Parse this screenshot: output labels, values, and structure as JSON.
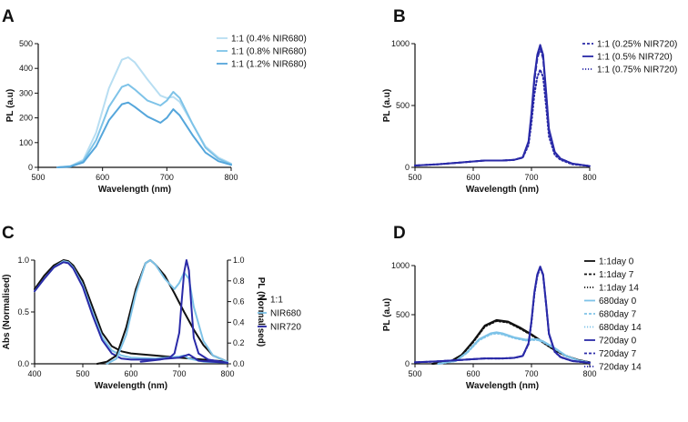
{
  "colors": {
    "axis": "#111111",
    "black": "#111111",
    "light_blue_1": "#B8DEF2",
    "light_blue_2": "#7EC3E8",
    "light_blue_3": "#55A6DB",
    "navy": "#2A2AA8"
  },
  "chart_data": [
    {
      "id": "A",
      "type": "line",
      "panel_letter": "A",
      "xlabel": "Wavelength (nm)",
      "ylabel": "PL (a.u)",
      "xlim": [
        500,
        800
      ],
      "ylim": [
        0,
        500
      ],
      "xticks": [
        500,
        600,
        700,
        800
      ],
      "yticks": [
        0,
        100,
        200,
        300,
        400,
        500
      ],
      "xtick_labels": [
        "500",
        "600",
        "700",
        "800"
      ],
      "ytick_labels": [
        "0",
        "100",
        "200",
        "300",
        "400",
        "500"
      ],
      "legend_position": "top-right",
      "series": [
        {
          "name": "1:1 (0.4% NIR680)",
          "color": "#B8DEF2",
          "style": "solid",
          "x": [
            530,
            550,
            570,
            590,
            610,
            630,
            640,
            650,
            670,
            690,
            700,
            710,
            720,
            740,
            760,
            780,
            800
          ],
          "y": [
            0,
            5,
            30,
            140,
            320,
            435,
            445,
            425,
            355,
            290,
            280,
            285,
            265,
            175,
            85,
            40,
            15
          ]
        },
        {
          "name": "1:1 (0.8% NIR680)",
          "color": "#7EC3E8",
          "style": "solid",
          "x": [
            530,
            550,
            570,
            590,
            610,
            630,
            640,
            650,
            670,
            690,
            700,
            710,
            720,
            740,
            760,
            780,
            800
          ],
          "y": [
            0,
            4,
            25,
            110,
            245,
            325,
            335,
            315,
            270,
            250,
            270,
            305,
            280,
            175,
            80,
            35,
            12
          ]
        },
        {
          "name": "1:1 (1.2% NIR680)",
          "color": "#55A6DB",
          "style": "solid",
          "x": [
            530,
            550,
            570,
            590,
            610,
            630,
            640,
            650,
            670,
            690,
            700,
            710,
            720,
            740,
            760,
            780,
            800
          ],
          "y": [
            0,
            3,
            20,
            85,
            190,
            255,
            262,
            245,
            205,
            180,
            200,
            235,
            210,
            130,
            60,
            25,
            10
          ]
        }
      ]
    },
    {
      "id": "B",
      "type": "line",
      "panel_letter": "B",
      "xlabel": "Wavelength (nm)",
      "ylabel": "PL (a.u)",
      "xlim": [
        500,
        800
      ],
      "ylim": [
        0,
        1000
      ],
      "xticks": [
        500,
        600,
        700,
        800
      ],
      "yticks": [
        0,
        500,
        1000
      ],
      "xtick_labels": [
        "500",
        "600",
        "700",
        "800"
      ],
      "ytick_labels": [
        "0",
        "500",
        "1000"
      ],
      "legend_position": "top-right",
      "series": [
        {
          "name": "1:1 (0.25% NIR720)",
          "color": "#2A2AA8",
          "style": "dashed",
          "x": [
            500,
            540,
            580,
            620,
            650,
            670,
            685,
            695,
            700,
            705,
            710,
            715,
            720,
            725,
            730,
            740,
            750,
            770,
            800
          ],
          "y": [
            15,
            25,
            40,
            55,
            55,
            60,
            80,
            200,
            420,
            700,
            880,
            960,
            880,
            600,
            300,
            120,
            70,
            30,
            10
          ]
        },
        {
          "name": "1:1 (0.5% NIR720)",
          "color": "#2A2AA8",
          "style": "solid",
          "x": [
            500,
            540,
            580,
            620,
            650,
            670,
            685,
            695,
            700,
            705,
            710,
            715,
            720,
            725,
            730,
            740,
            750,
            770,
            800
          ],
          "y": [
            15,
            25,
            40,
            55,
            55,
            60,
            80,
            210,
            440,
            730,
            910,
            990,
            910,
            620,
            310,
            125,
            70,
            30,
            10
          ]
        },
        {
          "name": "1:1 (0.75% NIR720)",
          "color": "#2A2AA8",
          "style": "dotted",
          "x": [
            500,
            540,
            580,
            620,
            650,
            670,
            685,
            695,
            700,
            705,
            710,
            715,
            720,
            725,
            730,
            740,
            750,
            770,
            800
          ],
          "y": [
            15,
            25,
            40,
            55,
            55,
            60,
            78,
            180,
            360,
            590,
            730,
            790,
            730,
            500,
            250,
            100,
            60,
            25,
            10
          ]
        }
      ]
    },
    {
      "id": "C",
      "type": "line",
      "panel_letter": "C",
      "xlabel": "Wavelength (nm)",
      "ylabel": "Abs (Normalised)",
      "y2label": "PL (Normalised)",
      "xlim": [
        400,
        800
      ],
      "ylim": [
        0,
        1
      ],
      "y2lim": [
        0,
        1
      ],
      "xticks": [
        400,
        500,
        600,
        700,
        800
      ],
      "yticks": [
        0,
        0.5,
        1
      ],
      "y2ticks": [
        0,
        0.2,
        0.4,
        0.6,
        0.8,
        1
      ],
      "xtick_labels": [
        "400",
        "500",
        "600",
        "700",
        "800"
      ],
      "ytick_labels": [
        "0.0",
        "0.5",
        "1.0"
      ],
      "y2tick_labels": [
        "0.0",
        "0.2",
        "0.4",
        "0.6",
        "0.8",
        "1.0"
      ],
      "legend_position": "right",
      "legend": [
        {
          "name": "1:1",
          "color": "#111111"
        },
        {
          "name": "NIR680",
          "color": "#7EC3E8"
        },
        {
          "name": "NIR720",
          "color": "#2A2AA8"
        }
      ],
      "series": [
        {
          "name": "1:1 Abs",
          "color": "#111111",
          "style": "solid",
          "x": [
            400,
            420,
            440,
            460,
            470,
            480,
            500,
            520,
            540,
            560,
            580,
            600,
            650,
            700,
            750,
            800
          ],
          "y": [
            0.72,
            0.85,
            0.95,
            1.0,
            0.99,
            0.95,
            0.8,
            0.55,
            0.3,
            0.17,
            0.12,
            0.1,
            0.08,
            0.06,
            0.04,
            0.02
          ]
        },
        {
          "name": "NIR680 Abs",
          "color": "#7EC3E8",
          "style": "solid",
          "x": [
            400,
            420,
            440,
            460,
            470,
            480,
            500,
            520,
            540,
            560,
            580,
            600,
            650,
            700,
            710,
            720,
            750,
            800
          ],
          "y": [
            0.7,
            0.82,
            0.93,
            0.99,
            0.98,
            0.93,
            0.76,
            0.5,
            0.26,
            0.13,
            0.08,
            0.06,
            0.05,
            0.07,
            0.08,
            0.05,
            0.02,
            0.01
          ]
        },
        {
          "name": "NIR720 Abs",
          "color": "#2A2AA8",
          "style": "solid",
          "x": [
            400,
            420,
            440,
            460,
            470,
            480,
            500,
            520,
            540,
            560,
            580,
            600,
            650,
            700,
            720,
            740,
            800
          ],
          "y": [
            0.7,
            0.82,
            0.93,
            0.98,
            0.97,
            0.92,
            0.74,
            0.47,
            0.23,
            0.1,
            0.05,
            0.04,
            0.04,
            0.06,
            0.09,
            0.03,
            0.01
          ]
        },
        {
          "name": "1:1 PL",
          "color": "#111111",
          "style": "solid",
          "x": [
            530,
            550,
            570,
            590,
            610,
            630,
            640,
            650,
            670,
            690,
            710,
            730,
            750,
            770,
            800
          ],
          "y": [
            0.0,
            0.02,
            0.08,
            0.35,
            0.72,
            0.97,
            1.0,
            0.96,
            0.85,
            0.68,
            0.5,
            0.33,
            0.18,
            0.08,
            0.02
          ]
        },
        {
          "name": "NIR680 PL",
          "color": "#7EC3E8",
          "style": "solid",
          "x": [
            550,
            570,
            590,
            610,
            630,
            640,
            650,
            670,
            690,
            700,
            710,
            720,
            730,
            750,
            770,
            800
          ],
          "y": [
            0.0,
            0.05,
            0.28,
            0.68,
            0.97,
            1.0,
            0.96,
            0.82,
            0.72,
            0.78,
            0.88,
            0.82,
            0.55,
            0.22,
            0.08,
            0.02
          ]
        },
        {
          "name": "NIR720 PL",
          "color": "#2A2AA8",
          "style": "solid",
          "x": [
            620,
            660,
            680,
            690,
            700,
            705,
            710,
            715,
            720,
            725,
            730,
            740,
            760,
            800
          ],
          "y": [
            0.02,
            0.04,
            0.06,
            0.1,
            0.3,
            0.6,
            0.88,
            1.0,
            0.9,
            0.55,
            0.25,
            0.1,
            0.04,
            0.01
          ]
        }
      ]
    },
    {
      "id": "D",
      "type": "line",
      "panel_letter": "D",
      "xlabel": "Wavelength (nm)",
      "ylabel": "PL (a.u)",
      "xlim": [
        500,
        800
      ],
      "ylim": [
        0,
        1000
      ],
      "xticks": [
        500,
        600,
        700,
        800
      ],
      "yticks": [
        0,
        500,
        1000
      ],
      "xtick_labels": [
        "500",
        "600",
        "700",
        "800"
      ],
      "ytick_labels": [
        "0",
        "500",
        "1000"
      ],
      "legend_position": "top-right",
      "series": [
        {
          "name": "1:1day 0",
          "color": "#111111",
          "style": "solid",
          "x": [
            530,
            560,
            580,
            600,
            620,
            640,
            660,
            680,
            700,
            720,
            740,
            760,
            780,
            800
          ],
          "y": [
            0,
            20,
            90,
            230,
            390,
            445,
            430,
            370,
            300,
            220,
            140,
            80,
            40,
            15
          ]
        },
        {
          "name": "1:1day 7",
          "color": "#111111",
          "style": "dashed",
          "x": [
            530,
            560,
            580,
            600,
            620,
            640,
            660,
            680,
            700,
            720,
            740,
            760,
            780,
            800
          ],
          "y": [
            0,
            20,
            88,
            225,
            385,
            440,
            425,
            365,
            296,
            218,
            138,
            79,
            39,
            15
          ]
        },
        {
          "name": "1:1day 14",
          "color": "#111111",
          "style": "dotted",
          "x": [
            530,
            560,
            580,
            600,
            620,
            640,
            660,
            680,
            700,
            720,
            740,
            760,
            780,
            800
          ],
          "y": [
            0,
            19,
            86,
            220,
            380,
            435,
            420,
            360,
            292,
            215,
            136,
            78,
            38,
            14
          ]
        },
        {
          "name": "680day 0",
          "color": "#7EC3E8",
          "style": "solid",
          "x": [
            540,
            570,
            590,
            610,
            630,
            640,
            650,
            670,
            690,
            700,
            710,
            720,
            740,
            760,
            780,
            800
          ],
          "y": [
            0,
            30,
            120,
            250,
            310,
            320,
            310,
            270,
            245,
            250,
            250,
            230,
            160,
            80,
            35,
            12
          ]
        },
        {
          "name": "680day 7",
          "color": "#7EC3E8",
          "style": "dashed",
          "x": [
            540,
            570,
            590,
            610,
            630,
            640,
            650,
            670,
            690,
            700,
            710,
            720,
            740,
            760,
            780,
            800
          ],
          "y": [
            0,
            29,
            118,
            245,
            305,
            315,
            305,
            266,
            241,
            246,
            246,
            226,
            157,
            78,
            34,
            12
          ]
        },
        {
          "name": "680day 14",
          "color": "#7EC3E8",
          "style": "dotted",
          "x": [
            540,
            570,
            590,
            610,
            630,
            640,
            650,
            670,
            690,
            700,
            710,
            720,
            740,
            760,
            780,
            800
          ],
          "y": [
            0,
            28,
            115,
            240,
            300,
            310,
            300,
            262,
            237,
            242,
            242,
            222,
            154,
            76,
            33,
            11
          ]
        },
        {
          "name": "720day 0",
          "color": "#2A2AA8",
          "style": "solid",
          "x": [
            500,
            540,
            580,
            620,
            650,
            670,
            685,
            695,
            700,
            705,
            710,
            715,
            720,
            725,
            730,
            740,
            750,
            770,
            800
          ],
          "y": [
            15,
            25,
            40,
            55,
            55,
            60,
            80,
            210,
            440,
            730,
            910,
            990,
            910,
            620,
            310,
            125,
            70,
            30,
            10
          ]
        },
        {
          "name": "720day 7",
          "color": "#2A2AA8",
          "style": "dashed",
          "x": [
            500,
            540,
            580,
            620,
            650,
            670,
            685,
            695,
            700,
            705,
            710,
            715,
            720,
            725,
            730,
            740,
            750,
            770,
            800
          ],
          "y": [
            15,
            25,
            40,
            55,
            55,
            60,
            80,
            205,
            430,
            720,
            900,
            985,
            905,
            615,
            305,
            122,
            68,
            29,
            10
          ]
        },
        {
          "name": "720day 14",
          "color": "#2A2AA8",
          "style": "dotted",
          "x": [
            500,
            540,
            580,
            620,
            650,
            670,
            685,
            695,
            700,
            705,
            710,
            715,
            720,
            725,
            730,
            740,
            750,
            770,
            800
          ],
          "y": [
            15,
            25,
            40,
            55,
            55,
            60,
            80,
            200,
            420,
            710,
            890,
            980,
            900,
            610,
            300,
            120,
            66,
            28,
            10
          ]
        }
      ]
    }
  ]
}
